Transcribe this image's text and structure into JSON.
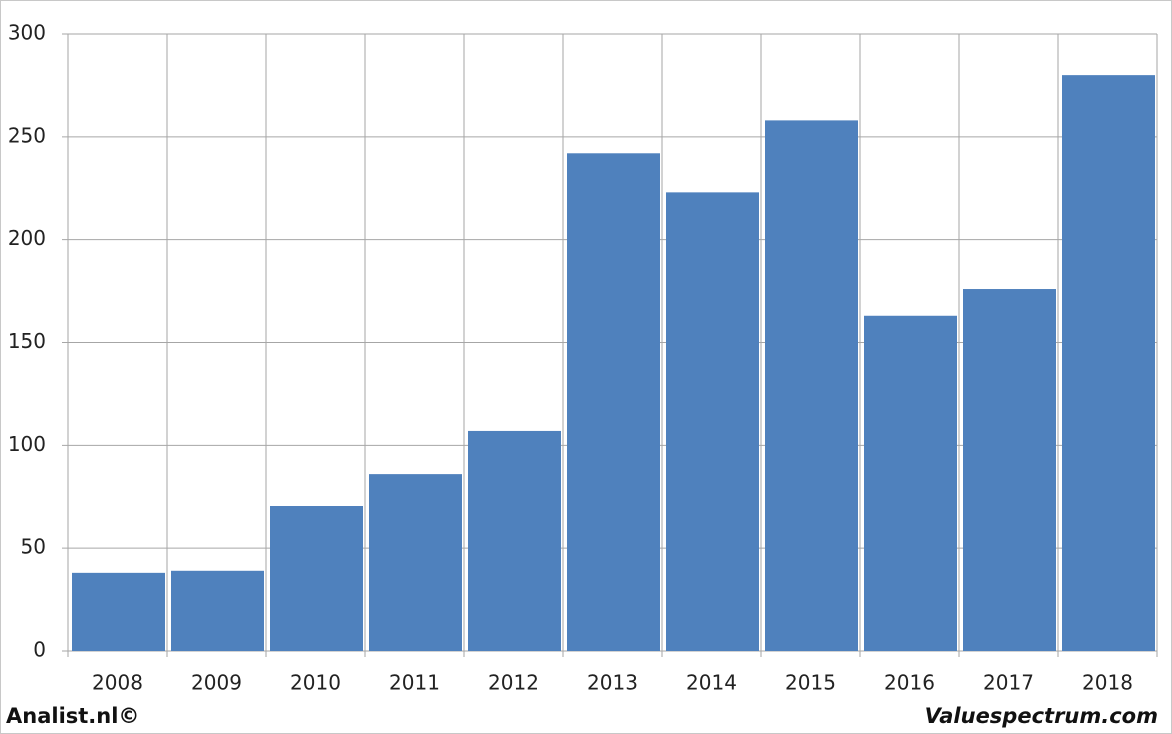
{
  "chart_data": {
    "type": "bar",
    "categories": [
      "2008",
      "2009",
      "2010",
      "2011",
      "2012",
      "2013",
      "2014",
      "2015",
      "2016",
      "2017",
      "2018"
    ],
    "values": [
      38,
      39,
      70.5,
      86,
      107,
      242,
      223,
      258,
      163,
      176,
      280
    ],
    "color": "#4f81bd",
    "ylim": [
      0,
      300
    ],
    "yticks": [
      0,
      50,
      100,
      150,
      200,
      250,
      300
    ],
    "grid": true
  },
  "footer": {
    "left": "Analist.nl©",
    "right": "Valuespectrum.com"
  }
}
